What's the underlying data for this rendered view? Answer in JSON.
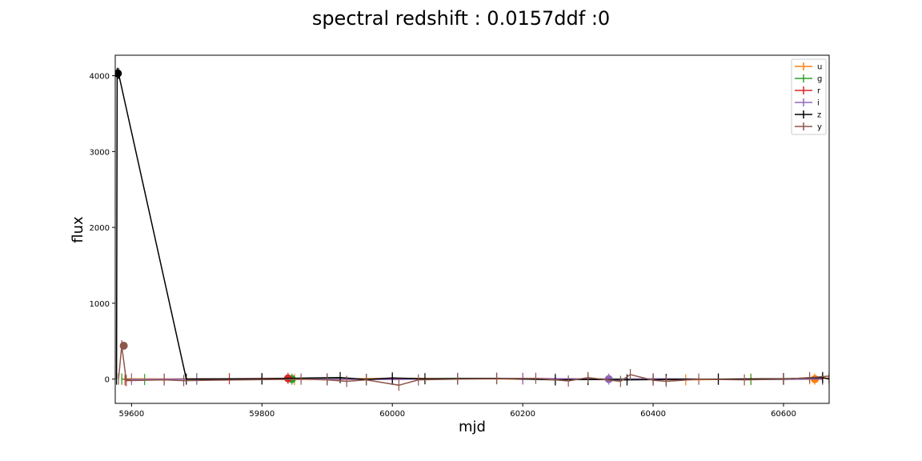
{
  "chart_data": {
    "type": "line",
    "title": "spectral redshift : 0.0157ddf :0",
    "xlabel": "mjd",
    "ylabel": "flux",
    "xlim": [
      59575,
      60670
    ],
    "ylim": [
      -320,
      4270
    ],
    "xticks": [
      59600,
      59800,
      60000,
      60200,
      60400,
      60600
    ],
    "yticks": [
      0,
      1000,
      2000,
      3000,
      4000
    ],
    "legend_position": "top-right",
    "series": [
      {
        "name": "u",
        "color": "#ff7f0e",
        "x": [
          59585,
          59600,
          59700,
          59850,
          60000,
          60200,
          60300,
          60450,
          60550,
          60640,
          60648,
          60670
        ],
        "y": [
          0,
          5,
          0,
          -5,
          10,
          0,
          5,
          -10,
          0,
          5,
          0,
          15
        ],
        "peak": {
          "x": 60648,
          "y": 0
        }
      },
      {
        "name": "g",
        "color": "#2ca02c",
        "x": [
          59585,
          59620,
          59700,
          59800,
          59846,
          59900,
          60000,
          60100,
          60250,
          60400,
          60550,
          60660
        ],
        "y": [
          0,
          -5,
          5,
          0,
          0,
          5,
          -5,
          10,
          0,
          5,
          -5,
          0
        ],
        "peak": {
          "x": 59846,
          "y": 0
        }
      },
      {
        "name": "r",
        "color": "#d62728",
        "x": [
          59590,
          59650,
          59750,
          59840,
          59900,
          60000,
          60100,
          60200,
          60300,
          60400,
          60500,
          60600,
          60660
        ],
        "y": [
          -10,
          0,
          5,
          10,
          -5,
          0,
          5,
          10,
          0,
          -5,
          0,
          5,
          0
        ],
        "peak": {
          "x": 59840,
          "y": 10
        }
      },
      {
        "name": "i",
        "color": "#9467bd",
        "x": [
          59600,
          59700,
          59800,
          59900,
          60000,
          60100,
          60200,
          60332,
          60400,
          60500,
          60600,
          60660
        ],
        "y": [
          -5,
          0,
          5,
          0,
          -5,
          5,
          10,
          0,
          5,
          0,
          -5,
          5
        ],
        "peak": {
          "x": 60332,
          "y": 0
        }
      },
      {
        "name": "z",
        "color": "#000000",
        "x": [
          59577,
          59578,
          59580,
          59684,
          59800,
          59920,
          59960,
          60000,
          60050,
          60160,
          60250,
          60300,
          60360,
          60420,
          60500,
          60600,
          60660,
          60670
        ],
        "y": [
          0,
          4030,
          4030,
          0,
          5,
          20,
          -5,
          15,
          5,
          10,
          -10,
          -5,
          -10,
          -5,
          0,
          5,
          20,
          0
        ],
        "peak": {
          "x": 59579,
          "y": 4030
        }
      },
      {
        "name": "y",
        "color": "#8c564b",
        "x": [
          59580,
          59585,
          59592,
          59650,
          59680,
          59860,
          59900,
          59930,
          59960,
          60010,
          60040,
          60100,
          60160,
          60220,
          60270,
          60300,
          60350,
          60365,
          60400,
          60420,
          60470,
          60540,
          60600,
          60640,
          60670
        ],
        "y": [
          0,
          440,
          -20,
          -10,
          -20,
          0,
          -10,
          -30,
          -10,
          -80,
          -10,
          0,
          5,
          10,
          -25,
          20,
          -30,
          60,
          -15,
          -30,
          0,
          -10,
          0,
          20,
          40
        ],
        "peak": {
          "x": 59588,
          "y": 440
        }
      }
    ]
  }
}
